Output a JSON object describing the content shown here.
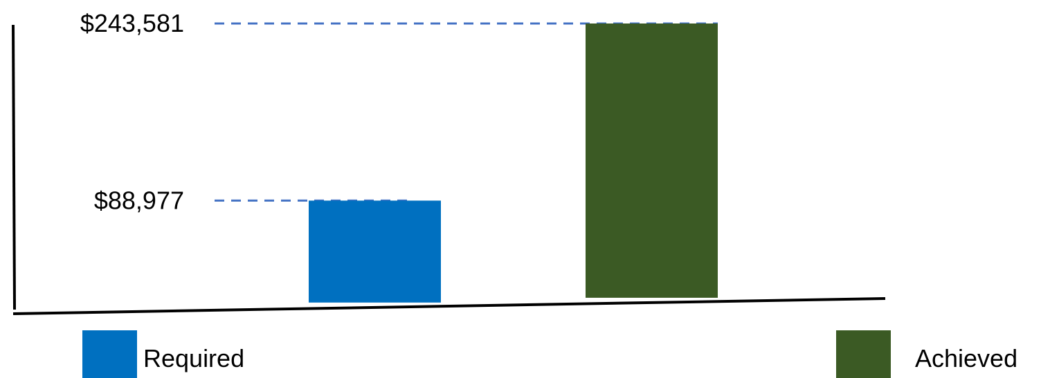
{
  "chart_data": {
    "type": "bar",
    "title": "",
    "xlabel": "",
    "ylabel": "",
    "categories": [
      "Required",
      "Achieved"
    ],
    "values": [
      88977,
      243581
    ],
    "value_labels": [
      "$88,977",
      "$243,581"
    ],
    "colors": [
      "#0070c0",
      "#3b5a24"
    ],
    "reference_line_color": "#4472c4",
    "ylim": [
      0,
      243581
    ],
    "grid": false,
    "legend_position": "bottom",
    "legend": [
      {
        "label": "Required",
        "color": "#0070c0"
      },
      {
        "label": "Achieved",
        "color": "#3b5a24"
      }
    ]
  }
}
